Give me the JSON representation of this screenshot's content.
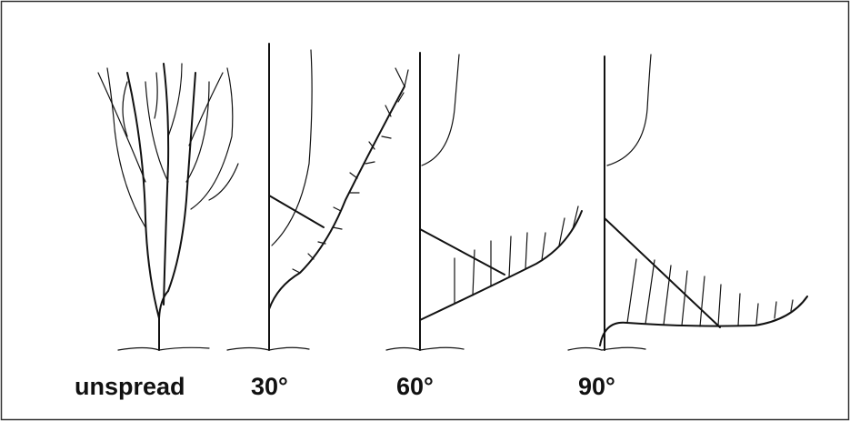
{
  "labels": [
    "unspread",
    "30°",
    "60°",
    "90°"
  ]
}
